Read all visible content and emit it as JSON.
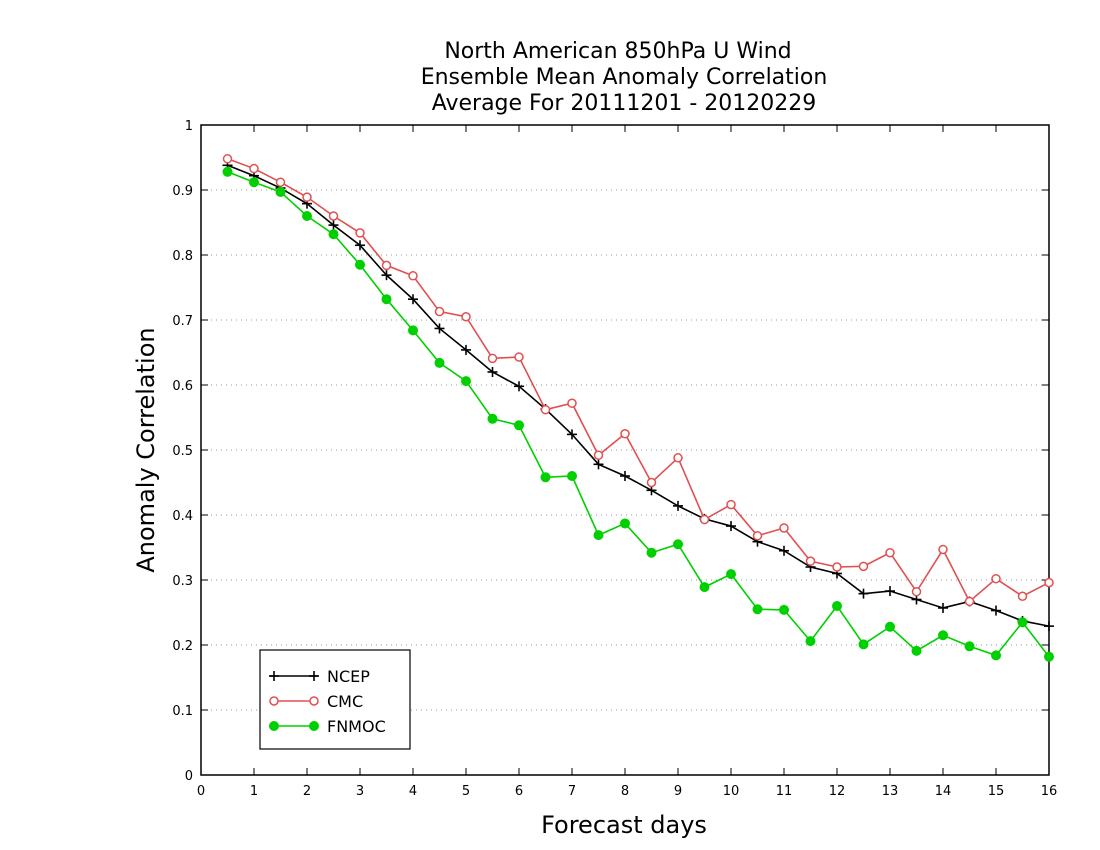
{
  "chart_data": {
    "type": "line",
    "title_lines": [
      "North American 850hPa U Wind",
      "Ensemble Mean Anomaly Correlation",
      "Average For 20111201 - 20120229"
    ],
    "xlabel": "Forecast days",
    "ylabel": "Anomaly Correlation",
    "xlim": [
      0,
      16
    ],
    "ylim": [
      0,
      1
    ],
    "x_ticks": [
      0,
      1,
      2,
      3,
      4,
      5,
      6,
      7,
      8,
      9,
      10,
      11,
      12,
      13,
      14,
      15,
      16
    ],
    "x_tick_labels": [
      "0",
      "1",
      "2",
      "3",
      "4",
      "5",
      "6",
      "7",
      "8",
      "9",
      "10",
      "11",
      "12",
      "13",
      "14",
      "15",
      "16"
    ],
    "y_ticks": [
      0,
      0.1,
      0.2,
      0.3,
      0.4,
      0.5,
      0.6,
      0.7,
      0.8,
      0.9,
      1
    ],
    "y_tick_labels": [
      "0",
      "0.1",
      "0.2",
      "0.3",
      "0.4",
      "0.5",
      "0.6",
      "0.7",
      "0.8",
      "0.9",
      "1"
    ],
    "grid": "horizontal-dotted",
    "legend_position": "bottom-left",
    "x": [
      0.5,
      1,
      1.5,
      2,
      2.5,
      3,
      3.5,
      4,
      4.5,
      5,
      5.5,
      6,
      6.5,
      7,
      7.5,
      8,
      8.5,
      9,
      9.5,
      10,
      10.5,
      11,
      11.5,
      12,
      12.5,
      13,
      13.5,
      14,
      14.5,
      15,
      15.5,
      16
    ],
    "series": [
      {
        "name": "NCEP",
        "color": "#000000",
        "marker": "plus",
        "values": [
          0.938,
          0.922,
          0.903,
          0.879,
          0.846,
          0.815,
          0.769,
          0.732,
          0.687,
          0.654,
          0.62,
          0.598,
          0.563,
          0.524,
          0.478,
          0.46,
          0.438,
          0.414,
          0.394,
          0.383,
          0.359,
          0.345,
          0.32,
          0.31,
          0.279,
          0.283,
          0.27,
          0.257,
          0.267,
          0.253,
          0.237,
          0.229
        ]
      },
      {
        "name": "CMC",
        "color": "#e05050",
        "marker": "open-circle",
        "values": [
          0.948,
          0.933,
          0.912,
          0.889,
          0.86,
          0.834,
          0.784,
          0.768,
          0.713,
          0.705,
          0.641,
          0.643,
          0.562,
          0.572,
          0.492,
          0.525,
          0.45,
          0.488,
          0.393,
          0.416,
          0.368,
          0.38,
          0.329,
          0.32,
          0.321,
          0.342,
          0.282,
          0.347,
          0.267,
          0.302,
          0.275,
          0.296
        ]
      },
      {
        "name": "FNMOC",
        "color": "#00d000",
        "marker": "filled-circle",
        "values": [
          0.928,
          0.912,
          0.897,
          0.86,
          0.832,
          0.785,
          0.732,
          0.684,
          0.634,
          0.606,
          0.548,
          0.538,
          0.458,
          0.46,
          0.369,
          0.387,
          0.342,
          0.355,
          0.289,
          0.309,
          0.255,
          0.254,
          0.206,
          0.26,
          0.201,
          0.228,
          0.191,
          0.215,
          0.198,
          0.184,
          0.235,
          0.182
        ]
      }
    ]
  }
}
